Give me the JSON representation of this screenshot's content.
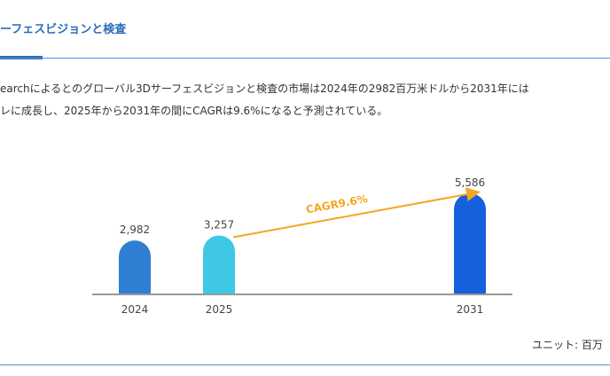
{
  "section": {
    "title": "ーフェスビジョンと検査",
    "paragraph_lines": [
      "earchによるとのグローバル3Dサーフェスビジョンと検査の市場は2024年の2982百万米ドルから2031年には",
      "レに成長し、2025年から2031年の間にCAGRは9.6%になると予測されている。"
    ]
  },
  "chart_data": {
    "type": "bar",
    "categories": [
      "2024",
      "2025",
      "2031"
    ],
    "values": [
      2982,
      3257,
      5586
    ],
    "value_labels": [
      "2,982",
      "3,257",
      "5,586"
    ],
    "colors": [
      "#2f7fd4",
      "#3ec8e6",
      "#1660dc"
    ],
    "annotation": {
      "text": "CAGR9.6%",
      "from": "2025",
      "to": "2031",
      "color": "#f5a623"
    },
    "unit_label": "ユニット: 百万",
    "grid": false
  }
}
